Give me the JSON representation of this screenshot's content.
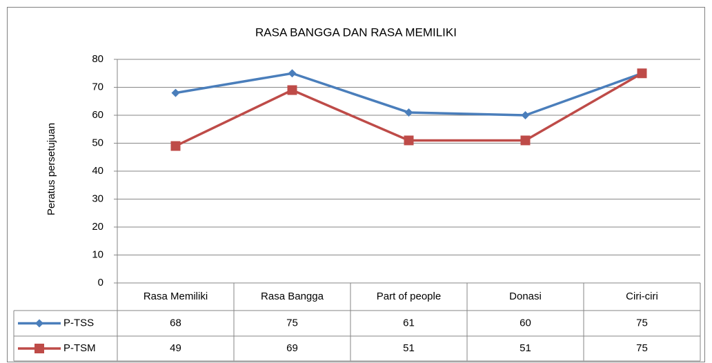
{
  "chart_data": {
    "type": "line",
    "title": "RASA BANGGA DAN RASA MEMILIKI",
    "y_label": "Peratus persetujuan",
    "categories": [
      "Rasa Memiliki",
      "Rasa Bangga",
      "Part of people",
      "Donasi",
      "Ciri-ciri"
    ],
    "series": [
      {
        "name": "P-TSS",
        "color": "#4a7ebb",
        "marker": "diamond",
        "values": [
          68,
          75,
          61,
          60,
          75
        ]
      },
      {
        "name": "P-TSM",
        "color": "#be4b48",
        "marker": "square",
        "values": [
          49,
          69,
          51,
          51,
          75
        ]
      }
    ],
    "ylim": [
      0,
      80
    ],
    "yticks": [
      0,
      10,
      20,
      30,
      40,
      50,
      60,
      70,
      80
    ],
    "grid": true,
    "data_table": true
  }
}
